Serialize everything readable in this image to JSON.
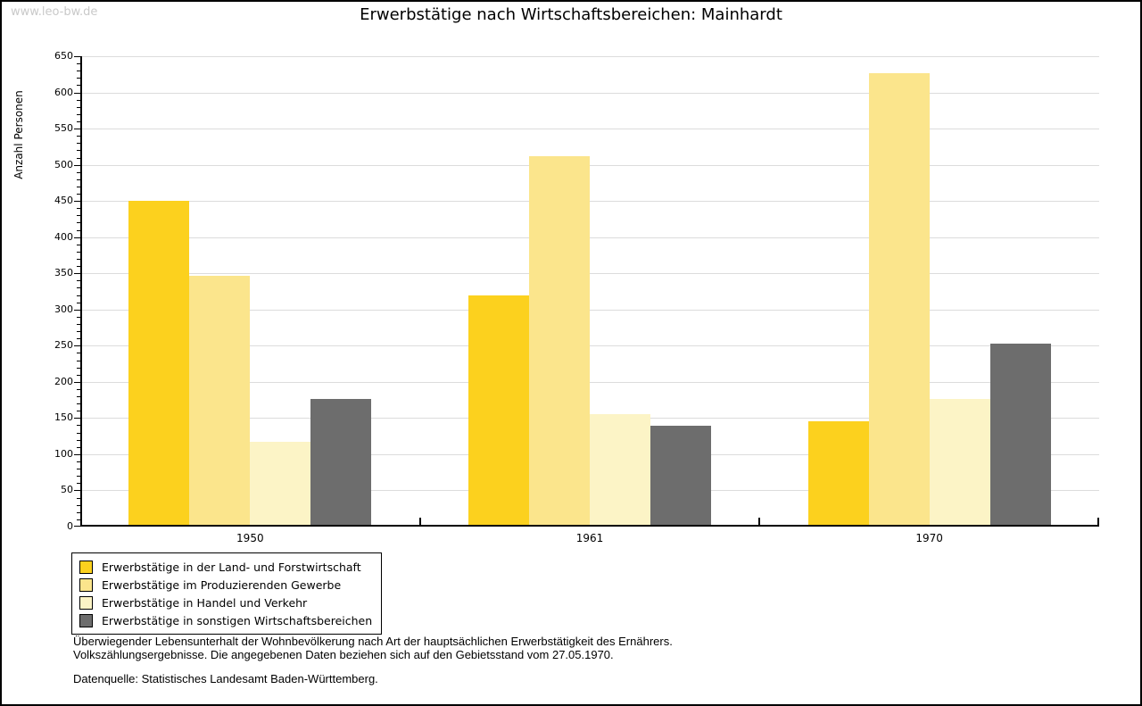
{
  "watermark": "www.leo-bw.de",
  "title": "Erwerbstätige nach Wirtschaftsbereichen: Mainhardt",
  "chart_data": {
    "type": "bar",
    "title": "Erwerbstätige nach Wirtschaftsbereichen: Mainhardt",
    "ylabel": "Anzahl Personen",
    "xlabel": "",
    "ylim": [
      0,
      650
    ],
    "ytick_step": 50,
    "ytick_minor_step": 10,
    "grid": true,
    "legend_position": "below-plot-left",
    "categories": [
      "1950",
      "1961",
      "1970"
    ],
    "series": [
      {
        "name": "Erwerbstätige in der Land- und Forstwirtschaft",
        "color": "#FCD11E",
        "values": [
          450,
          320,
          146
        ]
      },
      {
        "name": "Erwerbstätige im Produzierenden Gewerbe",
        "color": "#FBE58C",
        "values": [
          347,
          512,
          627
        ]
      },
      {
        "name": "Erwerbstätige in Handel und Verkehr",
        "color": "#FCF4C6",
        "values": [
          117,
          155,
          176
        ]
      },
      {
        "name": "Erwerbstätige in sonstigen Wirtschaftsbereichen",
        "color": "#6D6D6D",
        "values": [
          176,
          139,
          253
        ]
      }
    ]
  },
  "footnotes": {
    "line1": "Überwiegender Lebensunterhalt der Wohnbevölkerung nach Art der hauptsächlichen Erwerbstätigkeit des Ernährers.",
    "line2": "Volkszählungsergebnisse. Die angegebenen Daten beziehen sich auf den Gebietsstand vom 27.05.1970.",
    "source": "Datenquelle: Statistisches Landesamt Baden-Württemberg."
  },
  "colors": {
    "axis": "#000000",
    "gridline": "#DCDCDC",
    "watermark": "#C9C9C9",
    "background": "#FFFFFF"
  }
}
